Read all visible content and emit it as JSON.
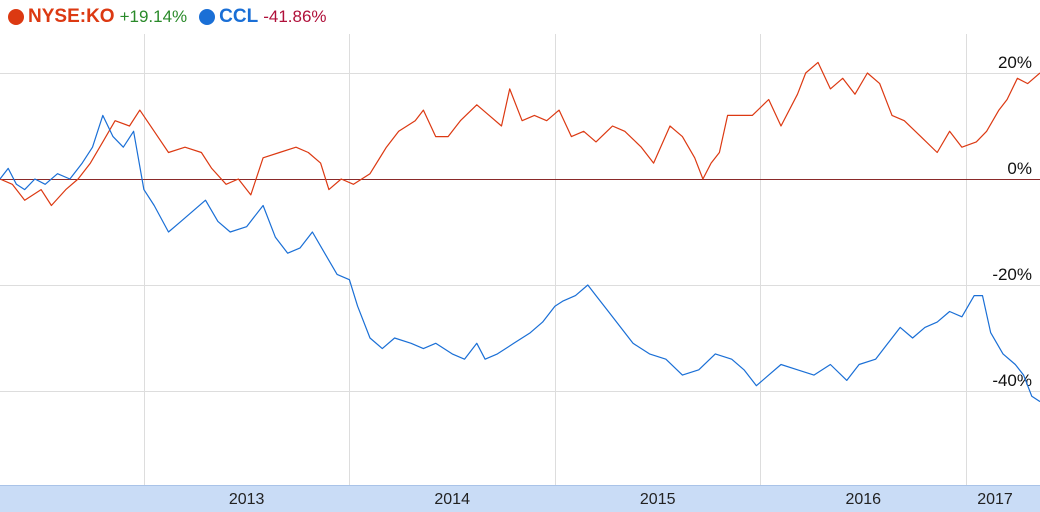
{
  "legend": {
    "items": [
      {
        "symbol": "NYSE:KO",
        "change": "+19.14%",
        "color": "#dc3912",
        "change_color": "#2a8a2a"
      },
      {
        "symbol": "CCL",
        "change": "-41.86%",
        "color": "#1a6fd6",
        "change_color": "#b0103a"
      }
    ]
  },
  "chart_data": {
    "type": "line",
    "x_ticks": [
      "2013",
      "2014",
      "2015",
      "2016",
      "2017"
    ],
    "y_ticks": [
      "20%",
      "0%",
      "-20%",
      "-40%"
    ],
    "y_tick_values": [
      20,
      0,
      -20,
      -40
    ],
    "ylim": [
      -47,
      25
    ],
    "xlim": [
      2012.3,
      2017.36
    ],
    "grid": true,
    "series": [
      {
        "name": "NYSE:KO",
        "color": "#dc3912",
        "final_change": "+19.14%",
        "points": [
          [
            2012.3,
            0
          ],
          [
            2012.36,
            -1
          ],
          [
            2012.42,
            -4
          ],
          [
            2012.5,
            -2
          ],
          [
            2012.55,
            -5
          ],
          [
            2012.62,
            -2
          ],
          [
            2012.68,
            0
          ],
          [
            2012.74,
            3
          ],
          [
            2012.8,
            7
          ],
          [
            2012.86,
            11
          ],
          [
            2012.93,
            10
          ],
          [
            2012.98,
            13
          ],
          [
            2013.05,
            9
          ],
          [
            2013.12,
            5
          ],
          [
            2013.2,
            6
          ],
          [
            2013.28,
            5
          ],
          [
            2013.33,
            2
          ],
          [
            2013.4,
            -1
          ],
          [
            2013.46,
            0
          ],
          [
            2013.52,
            -3
          ],
          [
            2013.58,
            4
          ],
          [
            2013.66,
            5
          ],
          [
            2013.74,
            6
          ],
          [
            2013.8,
            5
          ],
          [
            2013.86,
            3
          ],
          [
            2013.9,
            -2
          ],
          [
            2013.96,
            0
          ],
          [
            2014.02,
            -1
          ],
          [
            2014.1,
            1
          ],
          [
            2014.18,
            6
          ],
          [
            2014.24,
            9
          ],
          [
            2014.32,
            11
          ],
          [
            2014.36,
            13
          ],
          [
            2014.42,
            8
          ],
          [
            2014.48,
            8
          ],
          [
            2014.54,
            11
          ],
          [
            2014.62,
            14
          ],
          [
            2014.68,
            12
          ],
          [
            2014.74,
            10
          ],
          [
            2014.78,
            17
          ],
          [
            2014.84,
            11
          ],
          [
            2014.9,
            12
          ],
          [
            2014.96,
            11
          ],
          [
            2015.02,
            13
          ],
          [
            2015.08,
            8
          ],
          [
            2015.14,
            9
          ],
          [
            2015.2,
            7
          ],
          [
            2015.28,
            10
          ],
          [
            2015.34,
            9
          ],
          [
            2015.42,
            6
          ],
          [
            2015.48,
            3
          ],
          [
            2015.56,
            10
          ],
          [
            2015.62,
            8
          ],
          [
            2015.68,
            4
          ],
          [
            2015.72,
            0
          ],
          [
            2015.76,
            3
          ],
          [
            2015.8,
            5
          ],
          [
            2015.84,
            12
          ],
          [
            2015.9,
            12
          ],
          [
            2015.96,
            12
          ],
          [
            2016.04,
            15
          ],
          [
            2016.1,
            10
          ],
          [
            2016.18,
            16
          ],
          [
            2016.22,
            20
          ],
          [
            2016.28,
            22
          ],
          [
            2016.34,
            17
          ],
          [
            2016.4,
            19
          ],
          [
            2016.46,
            16
          ],
          [
            2016.52,
            20
          ],
          [
            2016.58,
            18
          ],
          [
            2016.64,
            12
          ],
          [
            2016.7,
            11
          ],
          [
            2016.78,
            8
          ],
          [
            2016.86,
            5
          ],
          [
            2016.92,
            9
          ],
          [
            2016.98,
            6
          ],
          [
            2017.05,
            7
          ],
          [
            2017.1,
            9
          ],
          [
            2017.16,
            13
          ],
          [
            2017.2,
            15
          ],
          [
            2017.25,
            19
          ],
          [
            2017.3,
            18
          ],
          [
            2017.36,
            20
          ]
        ]
      },
      {
        "name": "CCL",
        "color": "#1a6fd6",
        "final_change": "-41.86%",
        "points": [
          [
            2012.3,
            0
          ],
          [
            2012.34,
            2
          ],
          [
            2012.38,
            -1
          ],
          [
            2012.42,
            -2
          ],
          [
            2012.47,
            0
          ],
          [
            2012.52,
            -1
          ],
          [
            2012.58,
            1
          ],
          [
            2012.64,
            0
          ],
          [
            2012.7,
            3
          ],
          [
            2012.75,
            6
          ],
          [
            2012.8,
            12
          ],
          [
            2012.85,
            8
          ],
          [
            2012.9,
            6
          ],
          [
            2012.95,
            9
          ],
          [
            2013.0,
            -2
          ],
          [
            2013.05,
            -5
          ],
          [
            2013.12,
            -10
          ],
          [
            2013.18,
            -8
          ],
          [
            2013.24,
            -6
          ],
          [
            2013.3,
            -4
          ],
          [
            2013.36,
            -8
          ],
          [
            2013.42,
            -10
          ],
          [
            2013.5,
            -9
          ],
          [
            2013.58,
            -5
          ],
          [
            2013.64,
            -11
          ],
          [
            2013.7,
            -14
          ],
          [
            2013.76,
            -13
          ],
          [
            2013.82,
            -10
          ],
          [
            2013.88,
            -14
          ],
          [
            2013.94,
            -18
          ],
          [
            2014.0,
            -19
          ],
          [
            2014.04,
            -24
          ],
          [
            2014.1,
            -30
          ],
          [
            2014.16,
            -32
          ],
          [
            2014.22,
            -30
          ],
          [
            2014.3,
            -31
          ],
          [
            2014.36,
            -32
          ],
          [
            2014.42,
            -31
          ],
          [
            2014.5,
            -33
          ],
          [
            2014.56,
            -34
          ],
          [
            2014.62,
            -31
          ],
          [
            2014.66,
            -34
          ],
          [
            2014.72,
            -33
          ],
          [
            2014.8,
            -31
          ],
          [
            2014.88,
            -29
          ],
          [
            2014.94,
            -27
          ],
          [
            2015.0,
            -24
          ],
          [
            2015.04,
            -23
          ],
          [
            2015.1,
            -22
          ],
          [
            2015.16,
            -20
          ],
          [
            2015.2,
            -22
          ],
          [
            2015.26,
            -25
          ],
          [
            2015.32,
            -28
          ],
          [
            2015.38,
            -31
          ],
          [
            2015.46,
            -33
          ],
          [
            2015.54,
            -34
          ],
          [
            2015.62,
            -37
          ],
          [
            2015.7,
            -36
          ],
          [
            2015.78,
            -33
          ],
          [
            2015.86,
            -34
          ],
          [
            2015.92,
            -36
          ],
          [
            2015.98,
            -39
          ],
          [
            2016.04,
            -37
          ],
          [
            2016.1,
            -35
          ],
          [
            2016.18,
            -36
          ],
          [
            2016.26,
            -37
          ],
          [
            2016.34,
            -35
          ],
          [
            2016.42,
            -38
          ],
          [
            2016.48,
            -35
          ],
          [
            2016.56,
            -34
          ],
          [
            2016.62,
            -31
          ],
          [
            2016.68,
            -28
          ],
          [
            2016.74,
            -30
          ],
          [
            2016.8,
            -28
          ],
          [
            2016.86,
            -27
          ],
          [
            2016.92,
            -25
          ],
          [
            2016.98,
            -26
          ],
          [
            2017.04,
            -22
          ],
          [
            2017.08,
            -22
          ],
          [
            2017.12,
            -29
          ],
          [
            2017.18,
            -33
          ],
          [
            2017.24,
            -35
          ],
          [
            2017.28,
            -37
          ],
          [
            2017.32,
            -41
          ],
          [
            2017.36,
            -42
          ]
        ]
      }
    ]
  }
}
